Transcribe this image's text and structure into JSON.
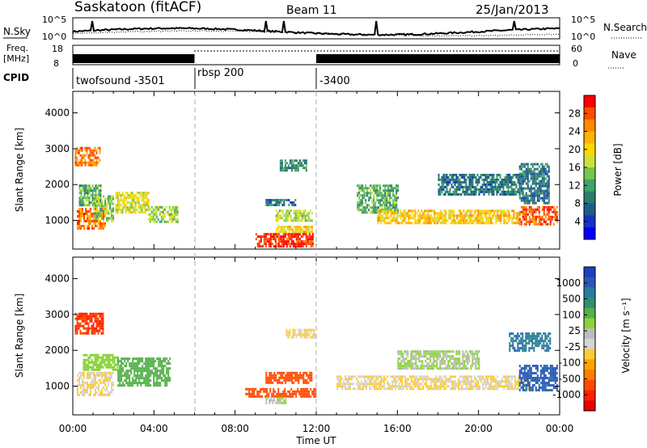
{
  "header": {
    "station": "Saskatoon (fitACF)",
    "beam": "Beam 11",
    "date": "25/Jan/2013"
  },
  "panels": {
    "nsky": {
      "label": "N.Sky",
      "ticks": [
        "10^5",
        "10^0"
      ],
      "right_label": "N.Search",
      "right_ticks": [
        "10^5",
        "10^0"
      ]
    },
    "freq": {
      "label_lines": [
        "Freq.",
        "[MHz]"
      ],
      "ticks": [
        "18",
        "8"
      ],
      "right_label": "Nave",
      "right_ticks": [
        "60",
        "0"
      ]
    },
    "cpid": {
      "label": "CPID",
      "segments": [
        "twofsound -3501",
        "rbsp 200",
        "-3400"
      ]
    }
  },
  "colorbars": {
    "power": {
      "label": "Power [dB]",
      "ticks": [
        "28",
        "24",
        "20",
        "16",
        "12",
        "8",
        "4"
      ],
      "colors": [
        "#ff0000",
        "#ff4d00",
        "#ff8a00",
        "#ffb300",
        "#ffd800",
        "#c8e23a",
        "#77c84a",
        "#3fa36a",
        "#2a7d6d",
        "#1f5d8a",
        "#1633c8",
        "#0000ff"
      ]
    },
    "velocity": {
      "label": "Velocity [m s⁻¹]",
      "ticks": [
        "1000",
        "500",
        "100",
        "25",
        "-25",
        "-100",
        "-500",
        "-1000"
      ],
      "colors": [
        "#1e3fc0",
        "#2a58b8",
        "#2a7aa0",
        "#2f8f70",
        "#55b04a",
        "#8cd23c",
        "#bdbdbd",
        "#d4d4d4",
        "#ffcc33",
        "#ffa500",
        "#ff7d00",
        "#ff4a00",
        "#ff2000",
        "#e60000"
      ]
    }
  },
  "chart_data": [
    {
      "type": "heatmap",
      "name": "Power",
      "ylabel": "Slant Range [km]",
      "xlabel": "Time UT",
      "xticks": [
        "00:00",
        "04:00",
        "08:00",
        "12:00",
        "16:00",
        "20:00",
        "00:00"
      ],
      "yticks": [
        1000,
        2000,
        3000,
        4000
      ],
      "xlim": [
        0,
        24
      ],
      "ylim": [
        200,
        4600
      ],
      "units": "dB",
      "crange": [
        0,
        30
      ],
      "patches": [
        {
          "t": [
            0.1,
            1.3
          ],
          "r": [
            2550,
            3050
          ],
          "v": 24
        },
        {
          "t": [
            0.2,
            1.6
          ],
          "r": [
            800,
            1350
          ],
          "v": 24
        },
        {
          "t": [
            0.3,
            1.4
          ],
          "r": [
            1400,
            2000
          ],
          "v": 12
        },
        {
          "t": [
            1.0,
            2.0
          ],
          "r": [
            1000,
            1700
          ],
          "v": 14
        },
        {
          "t": [
            2.1,
            3.7
          ],
          "r": [
            1200,
            1800
          ],
          "v": 17
        },
        {
          "t": [
            3.7,
            5.2
          ],
          "r": [
            950,
            1400
          ],
          "v": 15
        },
        {
          "t": [
            9.0,
            11.8
          ],
          "r": [
            300,
            650
          ],
          "v": 28
        },
        {
          "t": [
            10.0,
            11.8
          ],
          "r": [
            650,
            850
          ],
          "v": 20
        },
        {
          "t": [
            10.0,
            11.8
          ],
          "r": [
            1000,
            1300
          ],
          "v": 16
        },
        {
          "t": [
            10.2,
            11.5
          ],
          "r": [
            2400,
            2700
          ],
          "v": 10
        },
        {
          "t": [
            9.5,
            11.0
          ],
          "r": [
            1400,
            1600
          ],
          "v": 8
        },
        {
          "t": [
            14.0,
            16.0
          ],
          "r": [
            1200,
            2000
          ],
          "v": 12
        },
        {
          "t": [
            15.0,
            22.0
          ],
          "r": [
            950,
            1300
          ],
          "v": 20
        },
        {
          "t": [
            18.0,
            22.0
          ],
          "r": [
            1700,
            2300
          ],
          "v": 8
        },
        {
          "t": [
            22.0,
            23.9
          ],
          "r": [
            900,
            1400
          ],
          "v": 26
        },
        {
          "t": [
            22.0,
            23.5
          ],
          "r": [
            1500,
            2600
          ],
          "v": 8
        }
      ]
    },
    {
      "type": "heatmap",
      "name": "Velocity",
      "ylabel": "Slant Range [km]",
      "xlabel": "Time UT",
      "xticks": [
        "00:00",
        "04:00",
        "08:00",
        "12:00",
        "16:00",
        "20:00",
        "00:00"
      ],
      "yticks": [
        1000,
        2000,
        3000,
        4000
      ],
      "xlim": [
        0,
        24
      ],
      "ylim": [
        200,
        4600
      ],
      "units": "m s-1",
      "patches": [
        {
          "t": [
            0.1,
            1.5
          ],
          "r": [
            2500,
            3050
          ],
          "v": -300
        },
        {
          "t": [
            0.2,
            2.0
          ],
          "r": [
            750,
            1400
          ],
          "v": 0
        },
        {
          "t": [
            0.5,
            2.2
          ],
          "r": [
            1450,
            1900
          ],
          "v": 80
        },
        {
          "t": [
            2.2,
            4.8
          ],
          "r": [
            1000,
            1800
          ],
          "v": 150
        },
        {
          "t": [
            9.5,
            11.8
          ],
          "r": [
            1100,
            1400
          ],
          "v": -200
        },
        {
          "t": [
            8.5,
            12.0
          ],
          "r": [
            700,
            950
          ],
          "v": -150
        },
        {
          "t": [
            9.5,
            10.5
          ],
          "r": [
            500,
            700
          ],
          "v": 60
        },
        {
          "t": [
            10.5,
            12.0
          ],
          "r": [
            2350,
            2600
          ],
          "v": 0
        },
        {
          "t": [
            13.0,
            22.5
          ],
          "r": [
            900,
            1300
          ],
          "v": 0
        },
        {
          "t": [
            16.0,
            20.0
          ],
          "r": [
            1500,
            2000
          ],
          "v": 60
        },
        {
          "t": [
            22.0,
            23.9
          ],
          "r": [
            900,
            1600
          ],
          "v": 800
        },
        {
          "t": [
            21.5,
            23.5
          ],
          "r": [
            2000,
            2500
          ],
          "v": 600
        }
      ]
    }
  ]
}
